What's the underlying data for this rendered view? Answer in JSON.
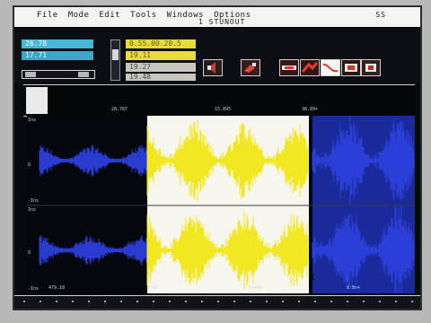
{
  "menubar": {
    "items": [
      "File",
      "Mode",
      "Edit",
      "Tools",
      "Windows",
      "Options"
    ],
    "right": "SS",
    "subtitle": "1   STUNOUT"
  },
  "toolbar": {
    "field_a": "26.78",
    "field_b": "17.71",
    "field_c": "0.55.00.20.5",
    "field_d": "19.11",
    "field_e": "19.27",
    "field_f": "19.48",
    "icons": [
      "speaker-icon",
      "edit-icon",
      "compress-icon",
      "loop-icon",
      "marker-icon",
      "curve-icon",
      "mixer-icon"
    ]
  },
  "strip": {
    "ticks": [
      "28.787",
      "15.895",
      "38.89+"
    ]
  },
  "wave": {
    "ylabels": [
      "Ins",
      "O",
      "-Ins",
      "Ins",
      "O",
      "-Ins"
    ],
    "xlabels": [
      "479.10",
      "8:48",
      "8:488",
      "8:8n+"
    ],
    "cursor_mark": "I"
  },
  "colors": {
    "screen_bg": "#060a0d",
    "waveform": "#2a3bd0",
    "selection": "#f1e822",
    "selection_bg": "#f6f6ee"
  }
}
